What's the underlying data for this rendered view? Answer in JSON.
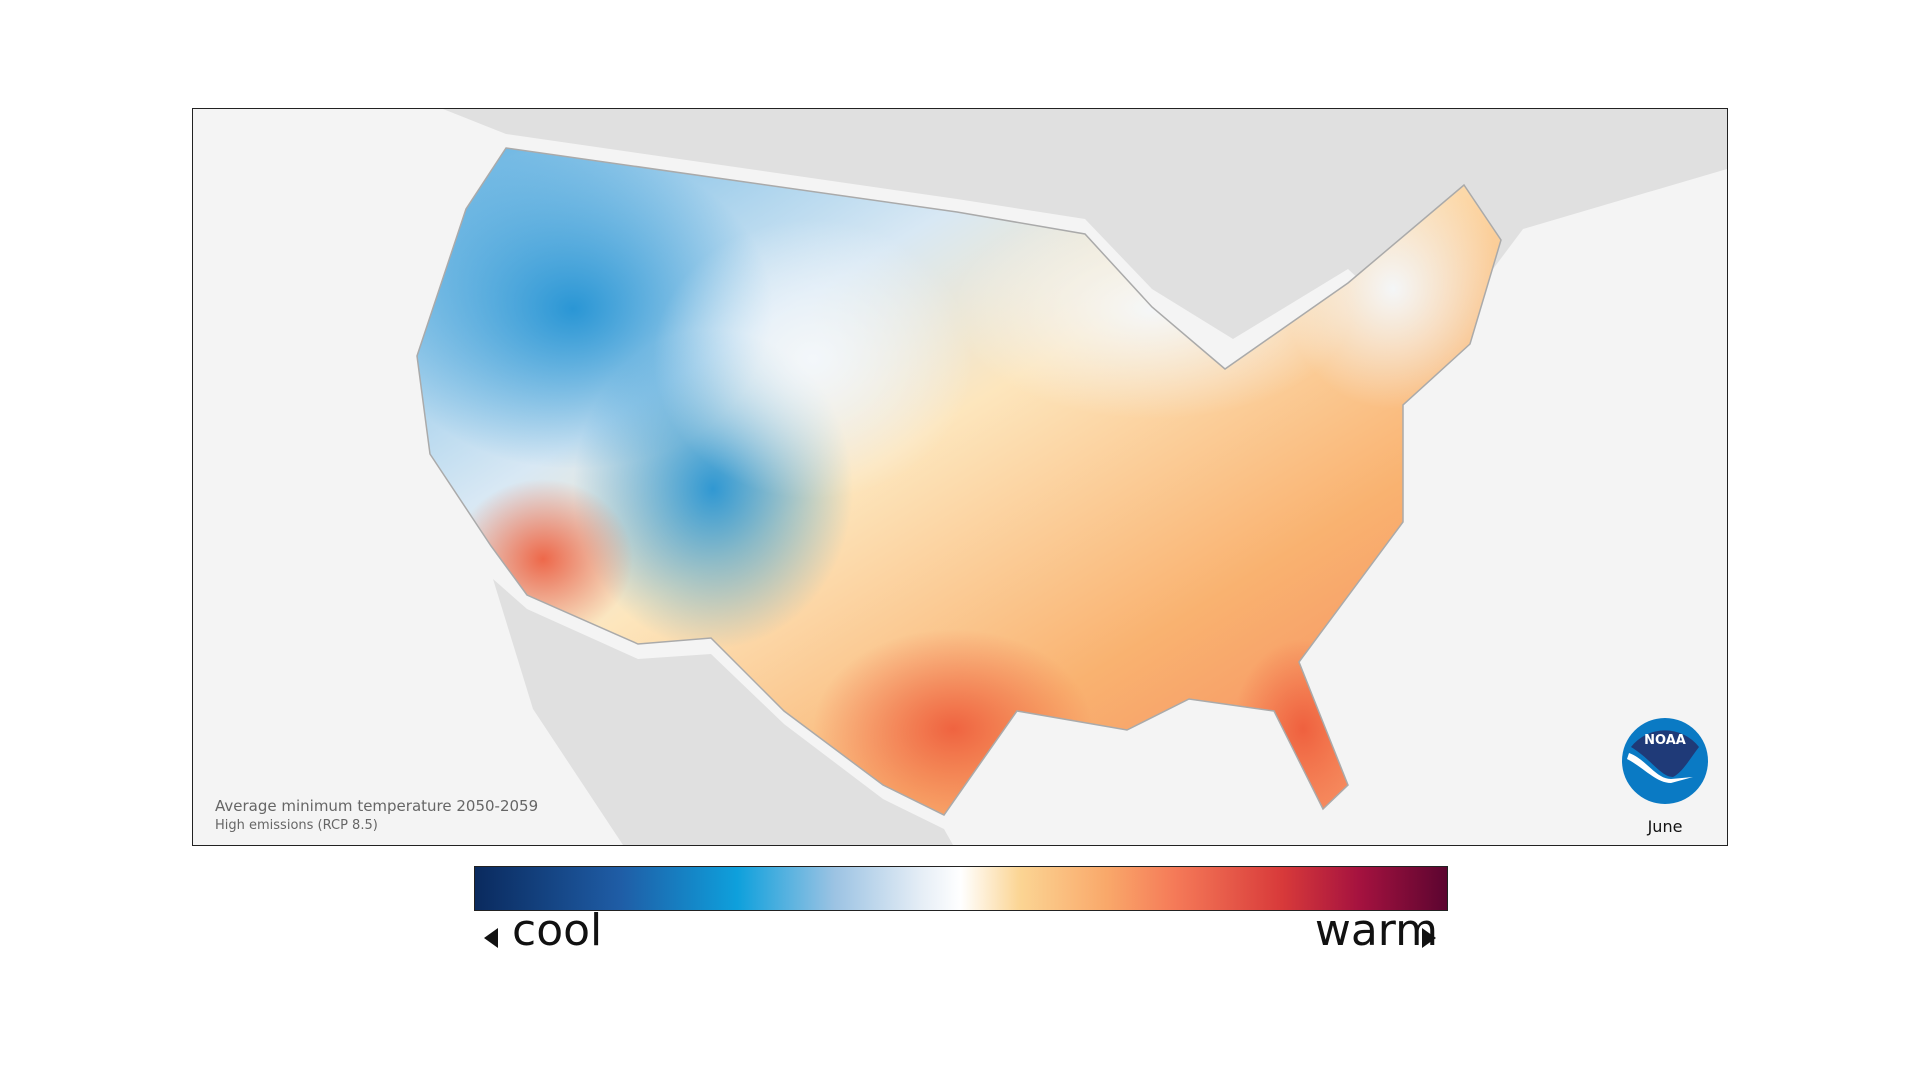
{
  "map": {
    "caption_title": "Average minimum temperature 2050-2059",
    "caption_subtitle": "High emissions (RCP 8.5)",
    "month": "June",
    "logo_text": "NOAA",
    "colors": {
      "cool": "#0ea0dc",
      "neutral": "#ffffff",
      "warm": "#f57a58",
      "land_outside": "#e0e0e0",
      "background": "#f4f4f4"
    }
  },
  "legend": {
    "cool_label": "cool",
    "warm_label": "warm",
    "cool_arrow_icon": "triangle-left",
    "warm_arrow_icon": "triangle-right"
  }
}
